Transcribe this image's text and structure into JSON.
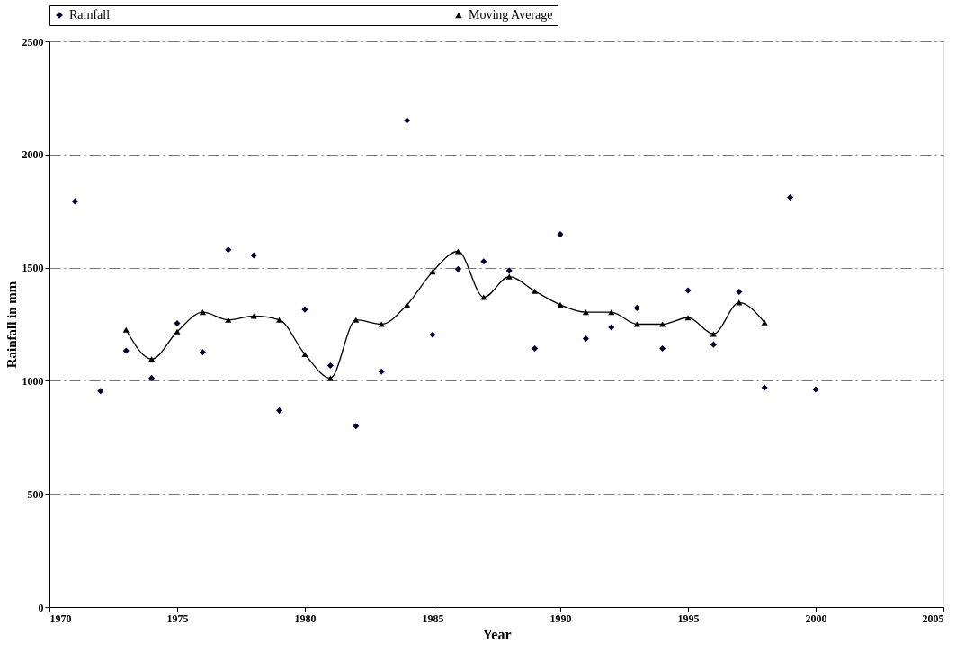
{
  "chart_data": {
    "type": "scatter",
    "xlabel": "Year",
    "ylabel": "Rainfall in mm",
    "xlim": [
      1970,
      2005
    ],
    "xticks": [
      1970,
      1975,
      1980,
      1985,
      1990,
      1995,
      2000,
      2005
    ],
    "ylim": [
      0,
      2500
    ],
    "yticks": [
      0,
      500,
      1000,
      1500,
      2000,
      2500
    ],
    "grid": "y",
    "legend": "top",
    "series": [
      {
        "name": "Rainfall",
        "marker": "diamond",
        "color": "#000033",
        "x": [
          1971,
          1972,
          1973,
          1974,
          1975,
          1976,
          1977,
          1978,
          1979,
          1980,
          1981,
          1982,
          1983,
          1984,
          1985,
          1986,
          1987,
          1988,
          1989,
          1990,
          1991,
          1992,
          1993,
          1994,
          1995,
          1996,
          1997,
          1998,
          1999,
          2000
        ],
        "values": [
          1793,
          955,
          1133,
          1012,
          1254,
          1126,
          1579,
          1554,
          869,
          1315,
          1067,
          800,
          1040,
          2150,
          1203,
          1493,
          1527,
          1486,
          1143,
          1647,
          1186,
          1236,
          1322,
          1143,
          1399,
          1160,
          1393,
          970,
          1810,
          962
        ]
      },
      {
        "name": "Moving Average",
        "type": "line",
        "marker": "triangle",
        "line_style": "solid",
        "color": "#000000",
        "x": [
          1973,
          1974,
          1975,
          1976,
          1977,
          1978,
          1979,
          1980,
          1981,
          1982,
          1983,
          1984,
          1985,
          1986,
          1987,
          1988,
          1989,
          1990,
          1991,
          1992,
          1993,
          1994,
          1995,
          1996,
          1997,
          1998
        ],
        "values": [
          1225,
          1096,
          1217,
          1303,
          1269,
          1286,
          1269,
          1117,
          1012,
          1269,
          1250,
          1336,
          1482,
          1572,
          1369,
          1460,
          1396,
          1336,
          1303,
          1303,
          1250,
          1250,
          1279,
          1207,
          1346,
          1257
        ]
      }
    ]
  }
}
